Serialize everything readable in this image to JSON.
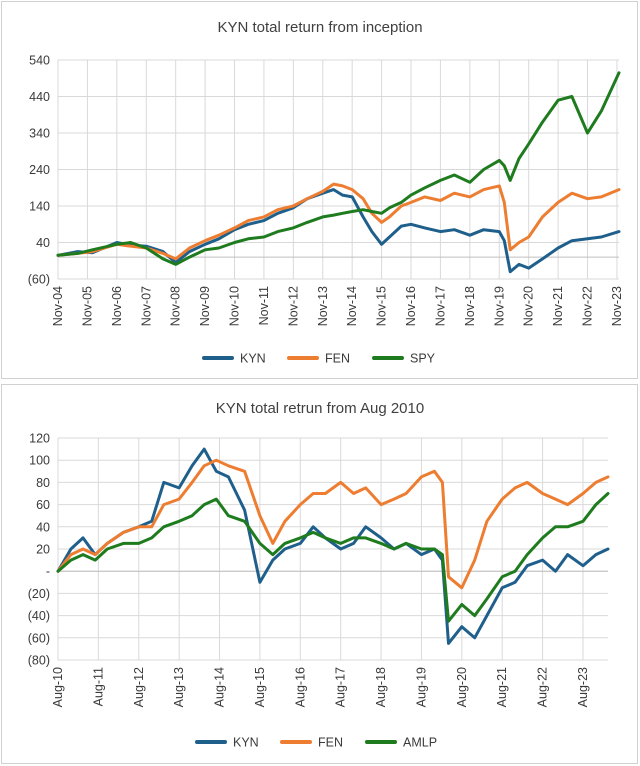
{
  "chart_data": [
    {
      "type": "line",
      "title": "KYN total return from inception",
      "y_ticks": [
        "540",
        "440",
        "340",
        "240",
        "140",
        "40",
        "(60)"
      ],
      "y_tick_values": [
        540,
        440,
        340,
        240,
        140,
        40,
        -60
      ],
      "ylim": [
        -60,
        540
      ],
      "x_ticks": [
        "Nov-04",
        "Nov-05",
        "Nov-06",
        "Nov-07",
        "Nov-08",
        "Nov-09",
        "Nov-10",
        "Nov-11",
        "Nov-12",
        "Nov-13",
        "Nov-14",
        "Nov-15",
        "Nov-16",
        "Nov-17",
        "Nov-18",
        "Nov-19",
        "Nov-20",
        "Nov-21",
        "Nov-22",
        "Nov-23"
      ],
      "x_tick_values": [
        2004.83,
        2005.83,
        2006.83,
        2007.83,
        2008.83,
        2009.83,
        2010.83,
        2011.83,
        2012.83,
        2013.83,
        2014.83,
        2015.83,
        2016.83,
        2017.83,
        2018.83,
        2019.83,
        2020.83,
        2021.83,
        2022.83,
        2023.83
      ],
      "xlim": [
        2004.83,
        2023.9
      ],
      "grid": true,
      "legend": "bottom",
      "series": [
        {
          "name": "KYN",
          "color": "#1f5f8b",
          "x": [
            2004.83,
            2005.5,
            2006.0,
            2006.83,
            2007.3,
            2007.83,
            2008.4,
            2008.83,
            2009.3,
            2009.83,
            2010.3,
            2010.83,
            2011.3,
            2011.83,
            2012.3,
            2012.83,
            2013.3,
            2013.83,
            2014.2,
            2014.5,
            2014.83,
            2015.2,
            2015.5,
            2015.83,
            2016.1,
            2016.5,
            2016.83,
            2017.3,
            2017.83,
            2018.3,
            2018.83,
            2019.3,
            2019.83,
            2020.0,
            2020.2,
            2020.5,
            2020.83,
            2021.3,
            2021.83,
            2022.3,
            2022.83,
            2023.3,
            2023.9
          ],
          "values": [
            5,
            15,
            12,
            40,
            33,
            30,
            15,
            -15,
            15,
            35,
            50,
            75,
            90,
            100,
            120,
            135,
            160,
            175,
            185,
            170,
            165,
            110,
            70,
            35,
            55,
            85,
            90,
            80,
            70,
            75,
            60,
            75,
            70,
            45,
            -40,
            -20,
            -30,
            -5,
            25,
            45,
            50,
            55,
            70
          ]
        },
        {
          "name": "FEN",
          "color": "#ed7d31",
          "x": [
            2004.83,
            2005.5,
            2006.0,
            2006.83,
            2007.3,
            2007.83,
            2008.4,
            2008.83,
            2009.3,
            2009.83,
            2010.3,
            2010.83,
            2011.3,
            2011.83,
            2012.3,
            2012.83,
            2013.3,
            2013.83,
            2014.2,
            2014.5,
            2014.83,
            2015.2,
            2015.5,
            2015.83,
            2016.1,
            2016.5,
            2016.83,
            2017.3,
            2017.83,
            2018.3,
            2018.83,
            2019.3,
            2019.83,
            2020.0,
            2020.2,
            2020.5,
            2020.83,
            2021.3,
            2021.83,
            2022.3,
            2022.83,
            2023.3,
            2023.9
          ],
          "values": [
            5,
            10,
            15,
            35,
            30,
            25,
            10,
            -5,
            25,
            45,
            60,
            80,
            100,
            110,
            130,
            140,
            160,
            180,
            200,
            195,
            185,
            160,
            120,
            95,
            110,
            140,
            150,
            165,
            155,
            175,
            165,
            185,
            195,
            150,
            20,
            40,
            55,
            110,
            150,
            175,
            160,
            165,
            185
          ]
        },
        {
          "name": "SPY",
          "color": "#1e7b1e",
          "x": [
            2004.83,
            2005.5,
            2006.0,
            2006.83,
            2007.3,
            2007.83,
            2008.4,
            2008.83,
            2009.3,
            2009.83,
            2010.3,
            2010.83,
            2011.3,
            2011.83,
            2012.3,
            2012.83,
            2013.3,
            2013.83,
            2014.2,
            2014.5,
            2014.83,
            2015.2,
            2015.5,
            2015.83,
            2016.1,
            2016.5,
            2016.83,
            2017.3,
            2017.83,
            2018.3,
            2018.83,
            2019.3,
            2019.83,
            2020.0,
            2020.2,
            2020.5,
            2020.83,
            2021.3,
            2021.83,
            2022.3,
            2022.83,
            2023.3,
            2023.9
          ],
          "values": [
            5,
            10,
            20,
            35,
            40,
            25,
            -5,
            -20,
            0,
            20,
            25,
            40,
            50,
            55,
            70,
            80,
            95,
            110,
            115,
            120,
            125,
            130,
            125,
            120,
            135,
            150,
            170,
            190,
            210,
            225,
            205,
            240,
            265,
            250,
            210,
            270,
            310,
            370,
            430,
            440,
            340,
            400,
            505
          ]
        }
      ]
    },
    {
      "type": "line",
      "title": "KYN total retrun from Aug 2010",
      "y_ticks": [
        "120",
        "100",
        "80",
        "60",
        "40",
        "20",
        "-",
        "(20)",
        "(40)",
        "(60)",
        "(80)"
      ],
      "y_tick_values": [
        120,
        100,
        80,
        60,
        40,
        20,
        0,
        -20,
        -40,
        -60,
        -80
      ],
      "ylim": [
        -80,
        120
      ],
      "x_ticks": [
        "Aug-10",
        "Aug-11",
        "Aug-12",
        "Aug-13",
        "Aug-14",
        "Aug-15",
        "Aug-16",
        "Aug-17",
        "Aug-18",
        "Aug-19",
        "Aug-20",
        "Aug-21",
        "Aug-22",
        "Aug-23"
      ],
      "x_tick_values": [
        2010.58,
        2011.58,
        2012.58,
        2013.58,
        2014.58,
        2015.58,
        2016.58,
        2017.58,
        2018.58,
        2019.58,
        2020.58,
        2021.58,
        2022.58,
        2023.58
      ],
      "xlim": [
        2010.58,
        2024.2
      ],
      "grid": true,
      "legend": "bottom",
      "series": [
        {
          "name": "KYN",
          "color": "#1f5f8b",
          "x": [
            2010.58,
            2010.9,
            2011.2,
            2011.5,
            2011.8,
            2012.2,
            2012.58,
            2012.9,
            2013.2,
            2013.58,
            2013.9,
            2014.2,
            2014.5,
            2014.8,
            2015.2,
            2015.58,
            2015.9,
            2016.2,
            2016.58,
            2016.9,
            2017.2,
            2017.58,
            2017.9,
            2018.2,
            2018.58,
            2018.9,
            2019.2,
            2019.58,
            2019.9,
            2020.1,
            2020.25,
            2020.58,
            2020.9,
            2021.2,
            2021.58,
            2021.9,
            2022.2,
            2022.58,
            2022.9,
            2023.2,
            2023.58,
            2023.9,
            2024.2
          ],
          "values": [
            0,
            20,
            30,
            15,
            25,
            35,
            40,
            45,
            80,
            75,
            95,
            110,
            90,
            85,
            55,
            -10,
            10,
            20,
            25,
            40,
            30,
            20,
            25,
            40,
            30,
            20,
            25,
            15,
            20,
            10,
            -65,
            -50,
            -60,
            -40,
            -15,
            -10,
            5,
            10,
            0,
            15,
            5,
            15,
            20
          ]
        },
        {
          "name": "FEN",
          "color": "#ed7d31",
          "x": [
            2010.58,
            2010.9,
            2011.2,
            2011.5,
            2011.8,
            2012.2,
            2012.58,
            2012.9,
            2013.2,
            2013.58,
            2013.9,
            2014.2,
            2014.5,
            2014.8,
            2015.2,
            2015.58,
            2015.9,
            2016.2,
            2016.58,
            2016.9,
            2017.2,
            2017.58,
            2017.9,
            2018.2,
            2018.58,
            2018.9,
            2019.2,
            2019.58,
            2019.9,
            2020.1,
            2020.25,
            2020.58,
            2020.9,
            2021.2,
            2021.58,
            2021.9,
            2022.2,
            2022.58,
            2022.9,
            2023.2,
            2023.58,
            2023.9,
            2024.2
          ],
          "values": [
            0,
            15,
            20,
            15,
            25,
            35,
            40,
            40,
            60,
            65,
            80,
            95,
            100,
            95,
            90,
            50,
            25,
            45,
            60,
            70,
            70,
            80,
            70,
            75,
            60,
            65,
            70,
            85,
            90,
            80,
            -5,
            -15,
            10,
            45,
            65,
            75,
            80,
            70,
            65,
            60,
            70,
            80,
            85
          ]
        },
        {
          "name": "AMLP",
          "color": "#1e7b1e",
          "x": [
            2010.58,
            2010.9,
            2011.2,
            2011.5,
            2011.8,
            2012.2,
            2012.58,
            2012.9,
            2013.2,
            2013.58,
            2013.9,
            2014.2,
            2014.5,
            2014.8,
            2015.2,
            2015.58,
            2015.9,
            2016.2,
            2016.58,
            2016.9,
            2017.2,
            2017.58,
            2017.9,
            2018.2,
            2018.58,
            2018.9,
            2019.2,
            2019.58,
            2019.9,
            2020.1,
            2020.25,
            2020.58,
            2020.9,
            2021.2,
            2021.58,
            2021.9,
            2022.2,
            2022.58,
            2022.9,
            2023.2,
            2023.58,
            2023.9,
            2024.2
          ],
          "values": [
            0,
            10,
            15,
            10,
            20,
            25,
            25,
            30,
            40,
            45,
            50,
            60,
            65,
            50,
            45,
            25,
            15,
            25,
            30,
            35,
            30,
            25,
            30,
            30,
            25,
            20,
            25,
            20,
            20,
            15,
            -45,
            -30,
            -40,
            -25,
            -5,
            0,
            15,
            30,
            40,
            40,
            45,
            60,
            70
          ]
        }
      ]
    }
  ]
}
